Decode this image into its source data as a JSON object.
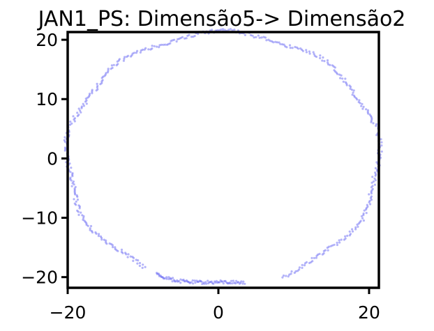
{
  "chart_data": {
    "type": "scatter",
    "title": "JAN1_PS: Dimensão5-> Dimensão2",
    "xlabel": "",
    "ylabel": "",
    "xlim": [
      -20,
      21.3
    ],
    "ylim": [
      -21.8,
      21.3
    ],
    "xticks": [
      -20,
      0,
      20
    ],
    "yticks": [
      -20,
      -10,
      0,
      10,
      20
    ],
    "xtick_labels": [
      "−20",
      "0",
      "20"
    ],
    "ytick_labels": [
      "−20",
      "−10",
      "0",
      "10",
      "20"
    ],
    "grid": false,
    "legend": "none",
    "marker_color": "#3b3bf0",
    "shape": "ring of points approximately centered at (0.5, 0) with radius about 21, with a gap at the lower right (angles about 280°–300°)",
    "arcs": [
      {
        "center": [
          0.6,
          0
        ],
        "rx": 20.7,
        "ry": 21.2,
        "angle_start_deg": -68,
        "angle_end_deg": 90,
        "points": 230
      },
      {
        "center": [
          0.6,
          0
        ],
        "rx": 20.7,
        "ry": 21.2,
        "angle_start_deg": 90,
        "angle_end_deg": 240,
        "points": 230
      },
      {
        "center": [
          0.6,
          0
        ],
        "rx": 20.7,
        "ry": 21.2,
        "angle_start_deg": 245,
        "angle_end_deg": 278,
        "points": 90
      }
    ]
  }
}
